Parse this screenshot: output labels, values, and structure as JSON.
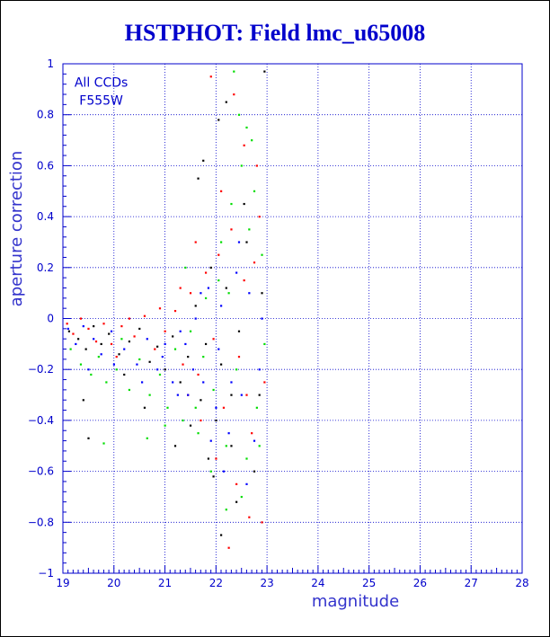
{
  "chart_data": {
    "type": "scatter",
    "title": "HSTPHOT: Field lmc_u65008",
    "xlabel": "magnitude",
    "ylabel": "aperture correction",
    "xlim": [
      19,
      28
    ],
    "ylim": [
      -1,
      1
    ],
    "x_ticks": [
      19,
      20,
      21,
      22,
      23,
      24,
      25,
      26,
      27,
      28
    ],
    "y_ticks": [
      -1,
      -0.8,
      -0.6,
      -0.4,
      -0.2,
      0,
      0.2,
      0.4,
      0.6,
      0.8,
      1
    ],
    "y_tick_labels": [
      "−1",
      "−0.8",
      "−0.6",
      "−0.4",
      "−0.2",
      "0",
      "0.2",
      "0.4",
      "0.6",
      "0.8",
      "1"
    ],
    "grid": true,
    "annotation": [
      "All CCDs",
      "F555W"
    ],
    "colors": {
      "text": "#0000cc",
      "grid": "#0000cc",
      "axis": "#0000cc"
    },
    "series": [
      {
        "color": "#000000",
        "points": [
          [
            19.12,
            -0.05
          ],
          [
            19.3,
            -0.08
          ],
          [
            19.45,
            -0.12
          ],
          [
            19.6,
            -0.03
          ],
          [
            19.75,
            -0.1
          ],
          [
            19.9,
            -0.06
          ],
          [
            20.1,
            -0.14
          ],
          [
            20.3,
            -0.09
          ],
          [
            20.5,
            -0.04
          ],
          [
            20.7,
            -0.17
          ],
          [
            20.85,
            -0.11
          ],
          [
            21.0,
            -0.2
          ],
          [
            21.15,
            -0.07
          ],
          [
            21.3,
            -0.25
          ],
          [
            21.45,
            -0.15
          ],
          [
            21.6,
            0.05
          ],
          [
            21.7,
            -0.32
          ],
          [
            21.8,
            -0.1
          ],
          [
            21.9,
            0.2
          ],
          [
            22.0,
            -0.4
          ],
          [
            22.1,
            -0.18
          ],
          [
            22.2,
            0.12
          ],
          [
            22.3,
            -0.5
          ],
          [
            22.45,
            -0.05
          ],
          [
            22.6,
            0.3
          ],
          [
            22.75,
            -0.6
          ],
          [
            22.9,
            0.1
          ],
          [
            21.65,
            0.55
          ],
          [
            21.75,
            0.62
          ],
          [
            22.05,
            0.78
          ],
          [
            22.2,
            0.85
          ],
          [
            22.4,
            -0.72
          ],
          [
            22.55,
            0.45
          ],
          [
            22.3,
            -0.3
          ],
          [
            21.5,
            -0.42
          ],
          [
            20.6,
            -0.35
          ],
          [
            19.5,
            -0.47
          ],
          [
            21.2,
            -0.5
          ],
          [
            21.95,
            -0.62
          ],
          [
            22.85,
            -0.3
          ],
          [
            22.95,
            0.97
          ],
          [
            22.1,
            -0.85
          ],
          [
            21.85,
            -0.55
          ],
          [
            20.2,
            -0.22
          ],
          [
            19.4,
            -0.32
          ]
        ]
      },
      {
        "color": "#ff0000",
        "points": [
          [
            19.08,
            -0.02
          ],
          [
            19.2,
            -0.06
          ],
          [
            19.35,
            0.0
          ],
          [
            19.5,
            -0.04
          ],
          [
            19.65,
            -0.09
          ],
          [
            19.8,
            -0.02
          ],
          [
            19.95,
            -0.1
          ],
          [
            20.15,
            -0.03
          ],
          [
            20.4,
            -0.07
          ],
          [
            20.6,
            0.01
          ],
          [
            20.8,
            -0.12
          ],
          [
            21.0,
            -0.05
          ],
          [
            21.2,
            0.03
          ],
          [
            21.35,
            -0.18
          ],
          [
            21.5,
            0.1
          ],
          [
            21.65,
            -0.22
          ],
          [
            21.8,
            0.18
          ],
          [
            21.95,
            -0.08
          ],
          [
            22.05,
            0.25
          ],
          [
            22.15,
            -0.35
          ],
          [
            22.3,
            0.35
          ],
          [
            22.45,
            -0.15
          ],
          [
            22.55,
            0.15
          ],
          [
            22.7,
            -0.45
          ],
          [
            22.85,
            0.4
          ],
          [
            22.95,
            -0.25
          ],
          [
            21.9,
            0.95
          ],
          [
            22.35,
            0.88
          ],
          [
            22.55,
            0.68
          ],
          [
            22.8,
            0.6
          ],
          [
            22.25,
            -0.9
          ],
          [
            22.65,
            -0.78
          ],
          [
            22.9,
            -0.8
          ],
          [
            22.1,
            0.5
          ],
          [
            21.7,
            -0.4
          ],
          [
            21.3,
            0.12
          ],
          [
            20.9,
            0.04
          ],
          [
            20.3,
            0.0
          ],
          [
            22.4,
            -0.65
          ],
          [
            22.75,
            0.22
          ],
          [
            21.6,
            0.3
          ],
          [
            22.0,
            -0.55
          ],
          [
            22.6,
            -0.3
          ],
          [
            21.45,
            -0.3
          ],
          [
            20.05,
            -0.15
          ]
        ]
      },
      {
        "color": "#00dd00",
        "points": [
          [
            19.15,
            -0.12
          ],
          [
            19.35,
            -0.18
          ],
          [
            19.55,
            -0.22
          ],
          [
            19.7,
            -0.15
          ],
          [
            19.85,
            -0.25
          ],
          [
            20.05,
            -0.2
          ],
          [
            20.3,
            -0.28
          ],
          [
            20.5,
            -0.16
          ],
          [
            20.7,
            -0.3
          ],
          [
            20.9,
            -0.22
          ],
          [
            21.05,
            -0.35
          ],
          [
            21.2,
            -0.12
          ],
          [
            21.35,
            -0.4
          ],
          [
            21.5,
            -0.05
          ],
          [
            21.65,
            -0.45
          ],
          [
            21.8,
            0.08
          ],
          [
            21.95,
            -0.28
          ],
          [
            22.1,
            0.3
          ],
          [
            22.2,
            -0.5
          ],
          [
            22.3,
            0.45
          ],
          [
            22.4,
            -0.2
          ],
          [
            22.5,
            0.6
          ],
          [
            22.6,
            -0.55
          ],
          [
            22.7,
            0.7
          ],
          [
            22.8,
            -0.35
          ],
          [
            22.9,
            0.25
          ],
          [
            22.35,
            0.97
          ],
          [
            22.45,
            0.8
          ],
          [
            22.6,
            0.75
          ],
          [
            22.75,
            0.5
          ],
          [
            22.2,
            -0.75
          ],
          [
            22.5,
            -0.7
          ],
          [
            22.85,
            -0.5
          ],
          [
            21.6,
            -0.35
          ],
          [
            21.0,
            -0.42
          ],
          [
            20.65,
            -0.47
          ],
          [
            19.8,
            -0.49
          ],
          [
            21.9,
            -0.6
          ],
          [
            22.05,
            0.15
          ],
          [
            22.25,
            0.1
          ],
          [
            21.75,
            -0.15
          ],
          [
            22.65,
            0.35
          ],
          [
            22.95,
            -0.1
          ],
          [
            20.15,
            -0.08
          ],
          [
            21.4,
            0.2
          ]
        ]
      },
      {
        "color": "#0000ff",
        "points": [
          [
            19.1,
            -0.04
          ],
          [
            19.25,
            -0.1
          ],
          [
            19.4,
            -0.03
          ],
          [
            19.6,
            -0.08
          ],
          [
            19.75,
            -0.14
          ],
          [
            19.95,
            -0.05
          ],
          [
            20.2,
            -0.12
          ],
          [
            20.45,
            -0.18
          ],
          [
            20.65,
            -0.08
          ],
          [
            20.85,
            -0.2
          ],
          [
            21.0,
            -0.1
          ],
          [
            21.15,
            -0.25
          ],
          [
            21.3,
            -0.05
          ],
          [
            21.45,
            -0.3
          ],
          [
            21.6,
            0.0
          ],
          [
            21.75,
            -0.25
          ],
          [
            21.85,
            0.12
          ],
          [
            22.0,
            -0.35
          ],
          [
            22.1,
            0.05
          ],
          [
            22.25,
            -0.45
          ],
          [
            22.4,
            0.18
          ],
          [
            22.5,
            -0.3
          ],
          [
            22.65,
            0.1
          ],
          [
            22.75,
            -0.48
          ],
          [
            22.9,
            0.0
          ],
          [
            22.15,
            -0.6
          ],
          [
            22.3,
            -0.25
          ],
          [
            21.55,
            -0.2
          ],
          [
            21.25,
            -0.3
          ],
          [
            20.95,
            -0.15
          ],
          [
            20.55,
            -0.25
          ],
          [
            20.0,
            -0.18
          ],
          [
            19.5,
            -0.2
          ],
          [
            22.6,
            -0.65
          ],
          [
            21.9,
            -0.48
          ],
          [
            22.85,
            -0.2
          ],
          [
            22.45,
            0.3
          ],
          [
            21.7,
            0.1
          ],
          [
            22.05,
            -0.12
          ],
          [
            21.4,
            -0.1
          ]
        ]
      }
    ]
  }
}
